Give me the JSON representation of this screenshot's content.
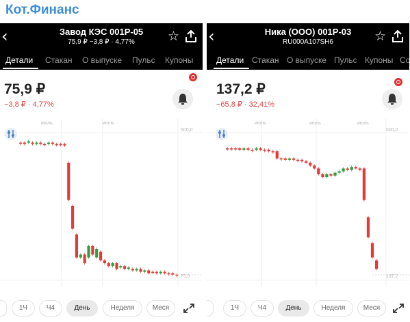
{
  "brand": {
    "title": "Кот.Финанс"
  },
  "panels": [
    {
      "header": {
        "title": "Завод КЭС 001P-05",
        "subtitle": "75,9 ₽   −3,8 ₽ · 4,77%"
      },
      "tabs": [
        "Детали",
        "Стакан",
        "О выпуске",
        "Пульс",
        "Купоны"
      ],
      "price": "75,9 ₽",
      "change": "−3,8 ₽ · 4,77%",
      "periods": [
        "1Ч",
        "Ч4",
        "День",
        "Неделя",
        "Меся"
      ],
      "active_period": "День",
      "chart_data": {
        "type": "candlestick",
        "x_labels": [
          "июль",
          "июль"
        ],
        "y_labels": [
          "500,0",
          "75,9"
        ],
        "candles": [
          {
            "o": 0.06,
            "c": 0.06,
            "bull": false
          },
          {
            "o": 0.06,
            "c": 0.07,
            "bull": false
          },
          {
            "o": 0.06,
            "c": 0.05,
            "bull": true
          },
          {
            "o": 0.06,
            "c": 0.07,
            "bull": false
          },
          {
            "o": 0.07,
            "c": 0.06,
            "bull": true
          },
          {
            "o": 0.06,
            "c": 0.07,
            "bull": false
          },
          {
            "o": 0.07,
            "c": 0.07,
            "bull": false
          },
          {
            "o": 0.07,
            "c": 0.06,
            "bull": true
          },
          {
            "o": 0.06,
            "c": 0.07,
            "bull": false
          },
          {
            "o": 0.07,
            "c": 0.07,
            "bull": false
          },
          {
            "o": 0.07,
            "c": 0.07,
            "bull": false
          },
          {
            "o": 0.07,
            "c": 0.08,
            "bull": false
          },
          {
            "o": 0.2,
            "c": 0.46,
            "bull": false
          },
          {
            "o": 0.5,
            "c": 0.66,
            "bull": false
          },
          {
            "o": 0.7,
            "c": 0.86,
            "bull": false
          },
          {
            "o": 0.86,
            "c": 0.84,
            "bull": true
          },
          {
            "o": 0.84,
            "c": 0.9,
            "bull": false
          },
          {
            "o": 0.86,
            "c": 0.78,
            "bull": true
          },
          {
            "o": 0.78,
            "c": 0.84,
            "bull": false
          },
          {
            "o": 0.86,
            "c": 0.8,
            "bull": true
          },
          {
            "o": 0.82,
            "c": 0.88,
            "bull": false
          },
          {
            "o": 0.88,
            "c": 0.9,
            "bull": false
          },
          {
            "o": 0.9,
            "c": 0.92,
            "bull": false
          },
          {
            "o": 0.92,
            "c": 0.9,
            "bull": true
          },
          {
            "o": 0.9,
            "c": 0.94,
            "bull": false
          },
          {
            "o": 0.93,
            "c": 0.92,
            "bull": true
          },
          {
            "o": 0.92,
            "c": 0.94,
            "bull": false
          },
          {
            "o": 0.94,
            "c": 0.93,
            "bull": true
          },
          {
            "o": 0.94,
            "c": 0.95,
            "bull": false
          },
          {
            "o": 0.95,
            "c": 0.94,
            "bull": true
          },
          {
            "o": 0.94,
            "c": 0.96,
            "bull": false
          },
          {
            "o": 0.96,
            "c": 0.95,
            "bull": true
          },
          {
            "o": 0.95,
            "c": 0.97,
            "bull": false
          },
          {
            "o": 0.96,
            "c": 0.96,
            "bull": false
          },
          {
            "o": 0.96,
            "c": 0.97,
            "bull": false
          },
          {
            "o": 0.97,
            "c": 0.96,
            "bull": true
          },
          {
            "o": 0.96,
            "c": 0.97,
            "bull": false
          },
          {
            "o": 0.97,
            "c": 0.97,
            "bull": false
          },
          {
            "o": 0.97,
            "c": 0.98,
            "bull": false
          },
          {
            "o": 0.98,
            "c": 0.98,
            "bull": false
          }
        ]
      }
    },
    {
      "header": {
        "title": "Ника (ООО) 001P-03",
        "subtitle": "RU000A107SH6"
      },
      "tabs": [
        "Детали",
        "Стакан",
        "О выпуске",
        "Пульс",
        "Купоны",
        "Со"
      ],
      "price": "137,2 ₽",
      "change": "−65,8 ₽ · 32,41%",
      "periods": [
        "1Ч",
        "Ч4",
        "День",
        "Неделя",
        "Меся"
      ],
      "active_period": "День",
      "chart_data": {
        "type": "candlestick",
        "x_labels": [
          "июль",
          "июль",
          "июль"
        ],
        "y_labels": [
          "500,0",
          "137,2"
        ],
        "candles": [
          {
            "o": 0.1,
            "c": 0.1,
            "bull": false
          },
          {
            "o": 0.1,
            "c": 0.1,
            "bull": false
          },
          {
            "o": 0.1,
            "c": 0.1,
            "bull": false
          },
          {
            "o": 0.1,
            "c": 0.11,
            "bull": false
          },
          {
            "o": 0.11,
            "c": 0.1,
            "bull": true
          },
          {
            "o": 0.1,
            "c": 0.11,
            "bull": false
          },
          {
            "o": 0.11,
            "c": 0.11,
            "bull": false
          },
          {
            "o": 0.11,
            "c": 0.1,
            "bull": true
          },
          {
            "o": 0.1,
            "c": 0.11,
            "bull": false
          },
          {
            "o": 0.11,
            "c": 0.11,
            "bull": false
          },
          {
            "o": 0.11,
            "c": 0.12,
            "bull": false
          },
          {
            "o": 0.12,
            "c": 0.12,
            "bull": false
          },
          {
            "o": 0.12,
            "c": 0.17,
            "bull": false
          },
          {
            "o": 0.17,
            "c": 0.17,
            "bull": false
          },
          {
            "o": 0.17,
            "c": 0.18,
            "bull": false
          },
          {
            "o": 0.18,
            "c": 0.17,
            "bull": true
          },
          {
            "o": 0.17,
            "c": 0.18,
            "bull": false
          },
          {
            "o": 0.18,
            "c": 0.18,
            "bull": false
          },
          {
            "o": 0.18,
            "c": 0.19,
            "bull": false
          },
          {
            "o": 0.19,
            "c": 0.2,
            "bull": false
          },
          {
            "o": 0.2,
            "c": 0.22,
            "bull": false
          },
          {
            "o": 0.22,
            "c": 0.24,
            "bull": false
          },
          {
            "o": 0.24,
            "c": 0.28,
            "bull": false
          },
          {
            "o": 0.28,
            "c": 0.3,
            "bull": false
          },
          {
            "o": 0.3,
            "c": 0.28,
            "bull": true
          },
          {
            "o": 0.28,
            "c": 0.29,
            "bull": false
          },
          {
            "o": 0.29,
            "c": 0.27,
            "bull": true
          },
          {
            "o": 0.27,
            "c": 0.26,
            "bull": true
          },
          {
            "o": 0.26,
            "c": 0.24,
            "bull": true
          },
          {
            "o": 0.24,
            "c": 0.25,
            "bull": false
          },
          {
            "o": 0.25,
            "c": 0.23,
            "bull": true
          },
          {
            "o": 0.23,
            "c": 0.24,
            "bull": false
          },
          {
            "o": 0.24,
            "c": 0.25,
            "bull": false
          },
          {
            "o": 0.24,
            "c": 0.46,
            "bull": false
          },
          {
            "o": 0.58,
            "c": 0.72,
            "bull": false
          },
          {
            "o": 0.76,
            "c": 0.86,
            "bull": false
          },
          {
            "o": 0.88,
            "c": 0.94,
            "bull": false
          }
        ]
      }
    }
  ],
  "colors": {
    "bear": "#e53935",
    "bull": "#2e9e3e",
    "accent": "#3d8fd6",
    "header_bg": "#000000"
  }
}
